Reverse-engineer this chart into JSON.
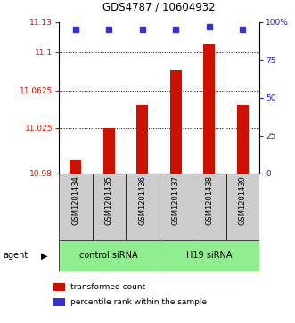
{
  "title": "GDS4787 / 10604932",
  "categories": [
    "GSM1201434",
    "GSM1201435",
    "GSM1201436",
    "GSM1201437",
    "GSM1201438",
    "GSM1201439"
  ],
  "bar_values": [
    10.993,
    11.025,
    11.048,
    11.082,
    11.108,
    11.048
  ],
  "percentile_values": [
    95,
    95,
    95,
    95,
    97,
    95
  ],
  "y_min": 10.98,
  "y_max": 11.13,
  "y_ticks": [
    10.98,
    11.025,
    11.0625,
    11.1,
    11.13
  ],
  "y_tick_labels": [
    "10.98",
    "11.025",
    "11.0625",
    "11.1",
    "11.13"
  ],
  "right_y_ticks": [
    0,
    25,
    50,
    75,
    100
  ],
  "right_y_tick_labels": [
    "0",
    "25",
    "50",
    "75",
    "100%"
  ],
  "group_labels": [
    "control siRNA",
    "H19 siRNA"
  ],
  "group_ranges": [
    [
      0,
      3
    ],
    [
      3,
      6
    ]
  ],
  "agent_label": "agent",
  "bar_color": "#cc1100",
  "dot_color": "#3333cc",
  "group_bg_color": "#90ee90",
  "sample_bg_color": "#cccccc",
  "legend_bar_label": "transformed count",
  "legend_dot_label": "percentile rank within the sample",
  "left_axis_color": "#cc1100",
  "right_axis_color": "#2222cc",
  "figsize": [
    3.31,
    3.63
  ],
  "dpi": 100
}
